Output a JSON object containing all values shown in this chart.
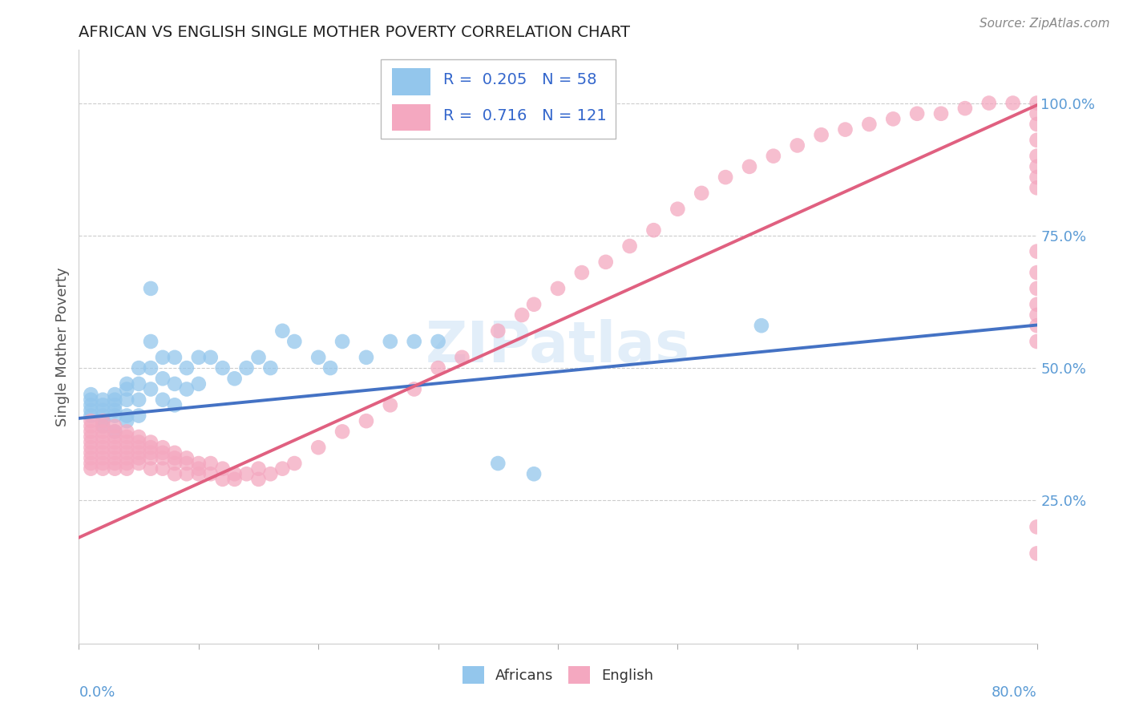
{
  "title": "AFRICAN VS ENGLISH SINGLE MOTHER POVERTY CORRELATION CHART",
  "source": "Source: ZipAtlas.com",
  "ylabel": "Single Mother Poverty",
  "right_yticklabels": [
    "",
    "25.0%",
    "50.0%",
    "75.0%",
    "100.0%"
  ],
  "right_yticks": [
    0.0,
    0.25,
    0.5,
    0.75,
    1.0
  ],
  "xlim": [
    0.0,
    0.8
  ],
  "ylim": [
    -0.02,
    1.1
  ],
  "watermark": "ZIPatlas",
  "legend_r_blue": "R =  0.205",
  "legend_n_blue": "N = 58",
  "legend_r_pink": "R =  0.716",
  "legend_n_pink": "N = 121",
  "blue_color": "#93C6EC",
  "pink_color": "#F4A8C0",
  "blue_line_color": "#4472C4",
  "pink_line_color": "#E06080",
  "blue_intercept": 0.405,
  "blue_slope": 0.22,
  "pink_intercept": 0.18,
  "pink_slope": 1.02,
  "africans_scatter_x": [
    0.01,
    0.01,
    0.01,
    0.01,
    0.01,
    0.02,
    0.02,
    0.02,
    0.02,
    0.02,
    0.02,
    0.03,
    0.03,
    0.03,
    0.03,
    0.03,
    0.03,
    0.04,
    0.04,
    0.04,
    0.04,
    0.04,
    0.05,
    0.05,
    0.05,
    0.05,
    0.06,
    0.06,
    0.06,
    0.06,
    0.07,
    0.07,
    0.07,
    0.08,
    0.08,
    0.08,
    0.09,
    0.09,
    0.1,
    0.1,
    0.11,
    0.12,
    0.13,
    0.14,
    0.15,
    0.16,
    0.17,
    0.18,
    0.2,
    0.21,
    0.22,
    0.24,
    0.26,
    0.28,
    0.3,
    0.35,
    0.38,
    0.57
  ],
  "africans_scatter_y": [
    0.43,
    0.44,
    0.45,
    0.42,
    0.41,
    0.44,
    0.43,
    0.42,
    0.41,
    0.4,
    0.39,
    0.45,
    0.44,
    0.43,
    0.42,
    0.41,
    0.38,
    0.47,
    0.46,
    0.44,
    0.41,
    0.4,
    0.5,
    0.47,
    0.44,
    0.41,
    0.65,
    0.55,
    0.5,
    0.46,
    0.52,
    0.48,
    0.44,
    0.52,
    0.47,
    0.43,
    0.5,
    0.46,
    0.52,
    0.47,
    0.52,
    0.5,
    0.48,
    0.5,
    0.52,
    0.5,
    0.57,
    0.55,
    0.52,
    0.5,
    0.55,
    0.52,
    0.55,
    0.55,
    0.55,
    0.32,
    0.3,
    0.58
  ],
  "english_scatter_x": [
    0.01,
    0.01,
    0.01,
    0.01,
    0.01,
    0.01,
    0.01,
    0.01,
    0.01,
    0.01,
    0.02,
    0.02,
    0.02,
    0.02,
    0.02,
    0.02,
    0.02,
    0.02,
    0.02,
    0.02,
    0.03,
    0.03,
    0.03,
    0.03,
    0.03,
    0.03,
    0.03,
    0.03,
    0.03,
    0.04,
    0.04,
    0.04,
    0.04,
    0.04,
    0.04,
    0.04,
    0.04,
    0.05,
    0.05,
    0.05,
    0.05,
    0.05,
    0.05,
    0.06,
    0.06,
    0.06,
    0.06,
    0.06,
    0.07,
    0.07,
    0.07,
    0.07,
    0.08,
    0.08,
    0.08,
    0.08,
    0.09,
    0.09,
    0.09,
    0.1,
    0.1,
    0.1,
    0.11,
    0.11,
    0.12,
    0.12,
    0.13,
    0.13,
    0.14,
    0.15,
    0.15,
    0.16,
    0.17,
    0.18,
    0.2,
    0.22,
    0.24,
    0.26,
    0.28,
    0.3,
    0.32,
    0.35,
    0.37,
    0.38,
    0.4,
    0.42,
    0.44,
    0.46,
    0.48,
    0.5,
    0.52,
    0.54,
    0.56,
    0.58,
    0.6,
    0.62,
    0.64,
    0.66,
    0.68,
    0.7,
    0.72,
    0.74,
    0.76,
    0.78,
    0.8,
    0.8,
    0.8,
    0.8,
    0.8,
    0.8,
    0.8,
    0.8,
    0.8,
    0.8,
    0.8,
    0.8,
    0.8,
    0.8,
    0.8,
    0.8,
    0.8
  ],
  "english_scatter_y": [
    0.4,
    0.39,
    0.38,
    0.37,
    0.36,
    0.35,
    0.34,
    0.33,
    0.32,
    0.31,
    0.4,
    0.39,
    0.38,
    0.37,
    0.36,
    0.35,
    0.34,
    0.33,
    0.32,
    0.31,
    0.39,
    0.38,
    0.37,
    0.36,
    0.35,
    0.34,
    0.33,
    0.32,
    0.31,
    0.38,
    0.37,
    0.36,
    0.35,
    0.34,
    0.33,
    0.32,
    0.31,
    0.37,
    0.36,
    0.35,
    0.34,
    0.33,
    0.32,
    0.36,
    0.35,
    0.34,
    0.33,
    0.31,
    0.35,
    0.34,
    0.33,
    0.31,
    0.34,
    0.33,
    0.32,
    0.3,
    0.33,
    0.32,
    0.3,
    0.32,
    0.31,
    0.3,
    0.32,
    0.3,
    0.31,
    0.29,
    0.3,
    0.29,
    0.3,
    0.31,
    0.29,
    0.3,
    0.31,
    0.32,
    0.35,
    0.38,
    0.4,
    0.43,
    0.46,
    0.5,
    0.52,
    0.57,
    0.6,
    0.62,
    0.65,
    0.68,
    0.7,
    0.73,
    0.76,
    0.8,
    0.83,
    0.86,
    0.88,
    0.9,
    0.92,
    0.94,
    0.95,
    0.96,
    0.97,
    0.98,
    0.98,
    0.99,
    1.0,
    1.0,
    1.0,
    0.98,
    0.96,
    0.93,
    0.9,
    0.88,
    0.86,
    0.84,
    0.55,
    0.58,
    0.6,
    0.62,
    0.65,
    0.68,
    0.72,
    0.15,
    0.2
  ]
}
